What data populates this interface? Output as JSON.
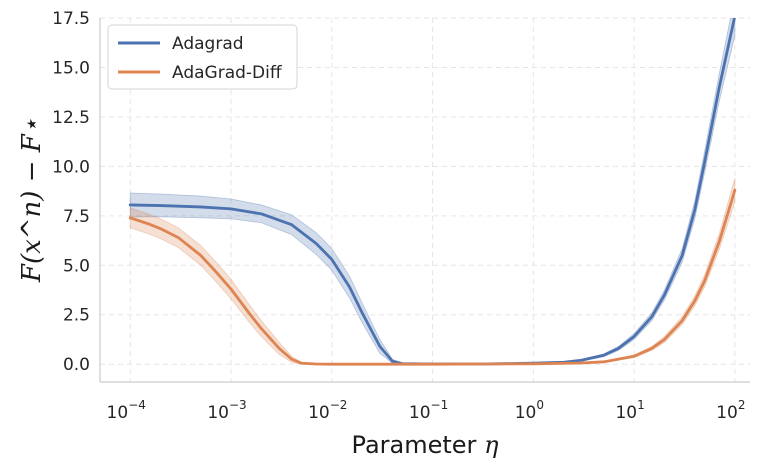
{
  "chart_data": {
    "type": "line",
    "title": "",
    "xlabel": "Parameter",
    "xlabel_symbol": "η",
    "ylabel": "F(x^n) − F⋆",
    "xscale": "log",
    "xlim_exp": [
      -4.3,
      2.15
    ],
    "ylim": [
      -0.9,
      17.5
    ],
    "x_ticks": [
      {
        "base": "10",
        "exp": "−4",
        "value": 0.0001
      },
      {
        "base": "10",
        "exp": "−3",
        "value": 0.001
      },
      {
        "base": "10",
        "exp": "−2",
        "value": 0.01
      },
      {
        "base": "10",
        "exp": "−1",
        "value": 0.1
      },
      {
        "base": "10",
        "exp": "0",
        "value": 1
      },
      {
        "base": "10",
        "exp": "1",
        "value": 10
      },
      {
        "base": "10",
        "exp": "2",
        "value": 100
      }
    ],
    "y_ticks": [
      {
        "label": "0.0",
        "value": 0.0
      },
      {
        "label": "2.5",
        "value": 2.5
      },
      {
        "label": "5.0",
        "value": 5.0
      },
      {
        "label": "7.5",
        "value": 7.5
      },
      {
        "label": "10.0",
        "value": 10.0
      },
      {
        "label": "12.5",
        "value": 12.5
      },
      {
        "label": "15.0",
        "value": 15.0
      },
      {
        "label": "17.5",
        "value": 17.5
      }
    ],
    "grid": true,
    "legend_position": "top-left",
    "series": [
      {
        "name": "Adagrad",
        "color": "#4c72b0",
        "points": [
          {
            "x": 0.0001,
            "y": 8.05,
            "lo": 7.45,
            "hi": 8.65
          },
          {
            "x": 0.0002,
            "y": 8.02,
            "lo": 7.45,
            "hi": 8.6
          },
          {
            "x": 0.0005,
            "y": 7.95,
            "lo": 7.4,
            "hi": 8.5
          },
          {
            "x": 0.001,
            "y": 7.85,
            "lo": 7.35,
            "hi": 8.35
          },
          {
            "x": 0.002,
            "y": 7.6,
            "lo": 7.15,
            "hi": 8.05
          },
          {
            "x": 0.004,
            "y": 7.05,
            "lo": 6.55,
            "hi": 7.55
          },
          {
            "x": 0.007,
            "y": 6.1,
            "lo": 5.55,
            "hi": 6.65
          },
          {
            "x": 0.01,
            "y": 5.3,
            "lo": 4.75,
            "hi": 5.85
          },
          {
            "x": 0.015,
            "y": 3.9,
            "lo": 3.35,
            "hi": 4.45
          },
          {
            "x": 0.02,
            "y": 2.6,
            "lo": 2.1,
            "hi": 3.1
          },
          {
            "x": 0.03,
            "y": 0.9,
            "lo": 0.55,
            "hi": 1.25
          },
          {
            "x": 0.04,
            "y": 0.15,
            "lo": 0.05,
            "hi": 0.25
          },
          {
            "x": 0.05,
            "y": 0.03,
            "lo": 0.0,
            "hi": 0.06
          },
          {
            "x": 0.1,
            "y": 0.01,
            "lo": 0.0,
            "hi": 0.02
          },
          {
            "x": 0.3,
            "y": 0.01,
            "lo": 0.0,
            "hi": 0.02
          },
          {
            "x": 1,
            "y": 0.05,
            "lo": 0.03,
            "hi": 0.07
          },
          {
            "x": 2,
            "y": 0.1,
            "lo": 0.07,
            "hi": 0.13
          },
          {
            "x": 3,
            "y": 0.2,
            "lo": 0.16,
            "hi": 0.24
          },
          {
            "x": 5,
            "y": 0.45,
            "lo": 0.38,
            "hi": 0.52
          },
          {
            "x": 7,
            "y": 0.8,
            "lo": 0.7,
            "hi": 0.9
          },
          {
            "x": 10,
            "y": 1.4,
            "lo": 1.25,
            "hi": 1.55
          },
          {
            "x": 15,
            "y": 2.4,
            "lo": 2.2,
            "hi": 2.6
          },
          {
            "x": 20,
            "y": 3.5,
            "lo": 3.25,
            "hi": 3.75
          },
          {
            "x": 30,
            "y": 5.5,
            "lo": 5.15,
            "hi": 5.85
          },
          {
            "x": 40,
            "y": 7.8,
            "lo": 7.35,
            "hi": 8.25
          },
          {
            "x": 50,
            "y": 10.2,
            "lo": 9.65,
            "hi": 10.75
          },
          {
            "x": 70,
            "y": 14.0,
            "lo": 13.3,
            "hi": 14.7
          },
          {
            "x": 100,
            "y": 17.6,
            "lo": 16.6,
            "hi": 18.6
          }
        ]
      },
      {
        "name": "AdaGrad-Diff",
        "color": "#dd8452",
        "points": [
          {
            "x": 0.0001,
            "y": 7.4,
            "lo": 6.9,
            "hi": 7.9
          },
          {
            "x": 0.00015,
            "y": 7.1,
            "lo": 6.6,
            "hi": 7.6
          },
          {
            "x": 0.0002,
            "y": 6.85,
            "lo": 6.35,
            "hi": 7.35
          },
          {
            "x": 0.0003,
            "y": 6.4,
            "lo": 5.9,
            "hi": 6.9
          },
          {
            "x": 0.0005,
            "y": 5.5,
            "lo": 5.0,
            "hi": 6.0
          },
          {
            "x": 0.0007,
            "y": 4.7,
            "lo": 4.2,
            "hi": 5.2
          },
          {
            "x": 0.001,
            "y": 3.8,
            "lo": 3.3,
            "hi": 4.3
          },
          {
            "x": 0.0015,
            "y": 2.6,
            "lo": 2.15,
            "hi": 3.05
          },
          {
            "x": 0.002,
            "y": 1.8,
            "lo": 1.4,
            "hi": 2.2
          },
          {
            "x": 0.003,
            "y": 0.8,
            "lo": 0.5,
            "hi": 1.1
          },
          {
            "x": 0.004,
            "y": 0.25,
            "lo": 0.1,
            "hi": 0.4
          },
          {
            "x": 0.005,
            "y": 0.05,
            "lo": 0.0,
            "hi": 0.1
          },
          {
            "x": 0.007,
            "y": 0.01,
            "lo": 0.0,
            "hi": 0.02
          },
          {
            "x": 0.01,
            "y": 0.0,
            "lo": 0.0,
            "hi": 0.01
          },
          {
            "x": 0.1,
            "y": 0.0,
            "lo": 0.0,
            "hi": 0.01
          },
          {
            "x": 1,
            "y": 0.02,
            "lo": 0.01,
            "hi": 0.03
          },
          {
            "x": 3,
            "y": 0.06,
            "lo": 0.04,
            "hi": 0.08
          },
          {
            "x": 5,
            "y": 0.12,
            "lo": 0.09,
            "hi": 0.15
          },
          {
            "x": 10,
            "y": 0.4,
            "lo": 0.33,
            "hi": 0.47
          },
          {
            "x": 15,
            "y": 0.8,
            "lo": 0.7,
            "hi": 0.9
          },
          {
            "x": 20,
            "y": 1.25,
            "lo": 1.1,
            "hi": 1.4
          },
          {
            "x": 30,
            "y": 2.2,
            "lo": 2.0,
            "hi": 2.4
          },
          {
            "x": 40,
            "y": 3.2,
            "lo": 2.95,
            "hi": 3.45
          },
          {
            "x": 50,
            "y": 4.2,
            "lo": 3.9,
            "hi": 4.5
          },
          {
            "x": 70,
            "y": 6.2,
            "lo": 5.8,
            "hi": 6.6
          },
          {
            "x": 100,
            "y": 8.8,
            "lo": 8.2,
            "hi": 9.4
          }
        ]
      }
    ]
  }
}
